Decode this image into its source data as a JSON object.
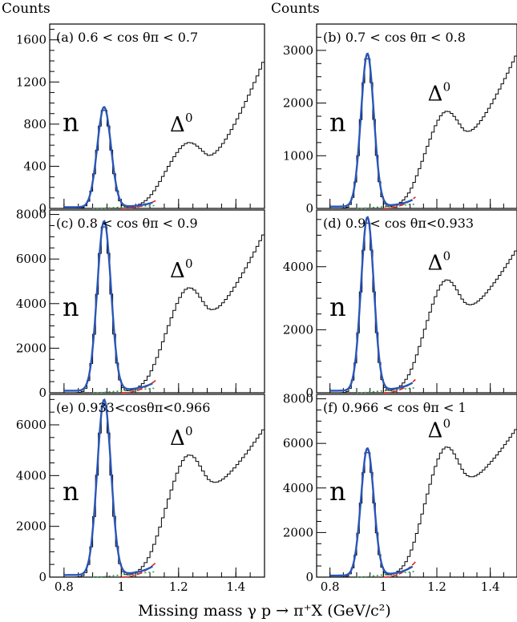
{
  "figure": {
    "ylabel": "Counts",
    "xlabel": "Missing mass γ p → π⁺X (GeV/c²)"
  },
  "chart_data": [
    {
      "id": "a",
      "type": "line",
      "label": "(a) 0.6 < cos θπ < 0.7",
      "xlim": [
        0.75,
        1.5
      ],
      "ylim": [
        0,
        1750
      ],
      "yticks": [
        0,
        400,
        800,
        1200,
        1600
      ],
      "xticks": [
        0.8,
        1,
        1.2,
        1.4
      ],
      "peak": {
        "name": "n",
        "mass": 0.94,
        "height": 950,
        "width": 0.024
      },
      "delta_label": "Δ",
      "delta_sup": "0",
      "delta_height": 610,
      "delta_dip": 580,
      "end_value": 1560
    },
    {
      "id": "b",
      "type": "line",
      "label": "(b) 0.7 < cos θπ < 0.8",
      "xlim": [
        0.75,
        1.5
      ],
      "ylim": [
        0,
        3500
      ],
      "yticks": [
        0,
        1000,
        2000,
        3000
      ],
      "xticks": [
        0.8,
        1,
        1.2,
        1.4
      ],
      "peak": {
        "name": "n",
        "mass": 0.94,
        "height": 2900,
        "width": 0.024
      },
      "delta_label": "Δ",
      "delta_sup": "0",
      "delta_height": 1800,
      "delta_dip": 1650,
      "end_value": 3300
    },
    {
      "id": "c",
      "type": "line",
      "label": "(c) 0.8 < cos θπ < 0.9",
      "xlim": [
        0.75,
        1.5
      ],
      "ylim": [
        0,
        8200
      ],
      "yticks": [
        0,
        2000,
        4000,
        6000,
        8000
      ],
      "xticks": [
        0.8,
        1,
        1.2,
        1.4
      ],
      "peak": {
        "name": "n",
        "mass": 0.94,
        "height": 7600,
        "width": 0.024
      },
      "delta_label": "Δ",
      "delta_sup": "0",
      "delta_height": 4600,
      "delta_dip": 4000,
      "end_value": 7900
    },
    {
      "id": "d",
      "type": "line",
      "label": "(d) 0.9 < cos θπ<0.933",
      "xlim": [
        0.75,
        1.5
      ],
      "ylim": [
        0,
        5800
      ],
      "yticks": [
        0,
        2000,
        4000
      ],
      "xticks": [
        0.8,
        1,
        1.2,
        1.4
      ],
      "peak": {
        "name": "n",
        "mass": 0.94,
        "height": 5500,
        "width": 0.024
      },
      "delta_label": "Δ",
      "delta_sup": "0",
      "delta_height": 3500,
      "delta_dip": 2950,
      "end_value": 5000
    },
    {
      "id": "e",
      "type": "line",
      "label": "(e) 0.933<cosθπ<0.966",
      "xlim": [
        0.75,
        1.5
      ],
      "ylim": [
        0,
        7200
      ],
      "yticks": [
        0,
        2000,
        4000,
        6000
      ],
      "xticks": [
        0.8,
        1,
        1.2,
        1.4
      ],
      "peak": {
        "name": "n",
        "mass": 0.94,
        "height": 6900,
        "width": 0.024
      },
      "delta_label": "Δ",
      "delta_sup": "0",
      "delta_height": 4700,
      "delta_dip": 3600,
      "end_value": 6100
    },
    {
      "id": "f",
      "type": "line",
      "label": "(f) 0.966 < cos θπ < 1",
      "xlim": [
        0.75,
        1.5
      ],
      "ylim": [
        0,
        8200
      ],
      "yticks": [
        0,
        2000,
        4000,
        6000,
        8000
      ],
      "xticks": [
        0.8,
        1,
        1.2,
        1.4
      ],
      "peak": {
        "name": "n",
        "mass": 0.94,
        "height": 5700,
        "width": 0.024
      },
      "delta_label": "Δ",
      "delta_sup": "0",
      "delta_height": 5700,
      "delta_dip": 4600,
      "end_value": 7200
    }
  ]
}
